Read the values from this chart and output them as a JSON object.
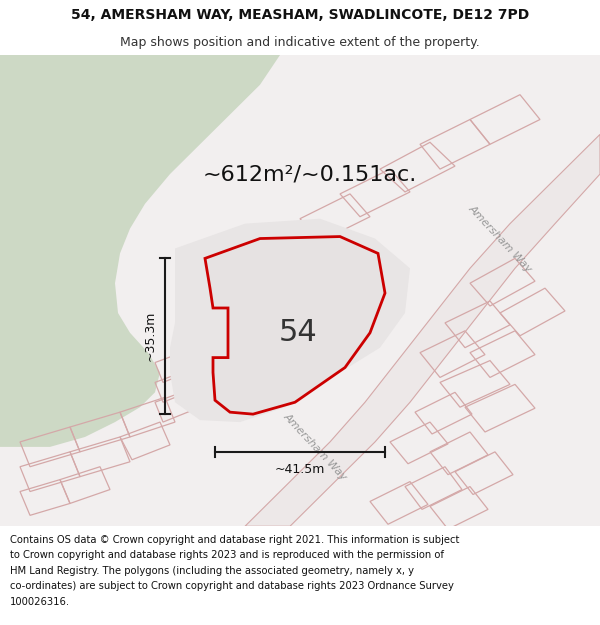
{
  "title_line1": "54, AMERSHAM WAY, MEASHAM, SWADLINCOTE, DE12 7PD",
  "title_line2": "Map shows position and indicative extent of the property.",
  "area_label": "~612m²/~0.151ac.",
  "number_label": "54",
  "dim_width": "~41.5m",
  "dim_height": "~35.3m",
  "street_label1": "Amersham Way",
  "street_label2": "Amersham Way",
  "footer": "Contains OS data © Crown copyright and database right 2021. This information is subject to Crown copyright and database rights 2023 and is reproduced with the permission of HM Land Registry. The polygons (including the associated geometry, namely x, y co-ordinates) are subject to Crown copyright and database rights 2023 Ordnance Survey 100026316.",
  "map_bg": "#f2efef",
  "green_area_color": "#cdd9c5",
  "plot_outline_color": "#cc0000",
  "plot_fill_color": "#e6e2e2",
  "road_line_color": "#d4a8a8",
  "dim_line_color": "#1a1a1a",
  "title_fontsize": 10,
  "subtitle_fontsize": 9,
  "area_fontsize": 16,
  "number_fontsize": 22,
  "footer_fontsize": 7.2,
  "street_fontsize": 8
}
